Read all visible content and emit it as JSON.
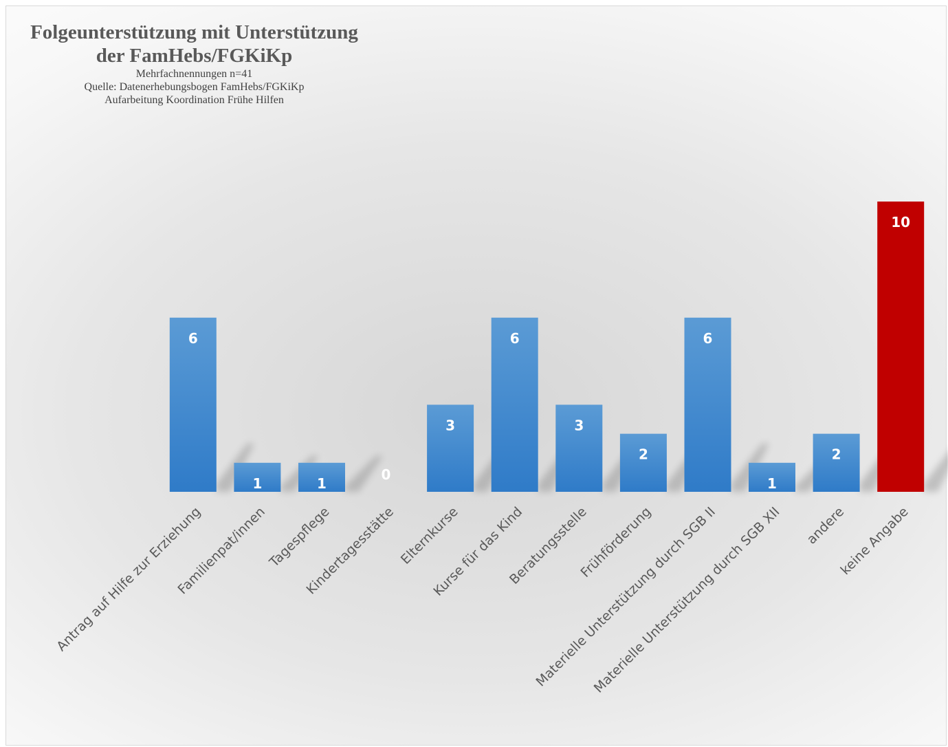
{
  "chart_data": {
    "type": "bar",
    "title_lines": [
      "Folgeunterstützung mit Unterstützung",
      "der FamHebs/FGKiKp"
    ],
    "subtitle_lines": [
      "Mehrfachnennungen n=41",
      "Quelle: Datenerhebungsbogen FamHebs/FGKiKp",
      "Aufarbeitung Koordination Frühe Hilfen"
    ],
    "categories": [
      "Antrag auf Hilfe zur Erziehung",
      "Familienpat/innen",
      "Tagespflege",
      "Kindertagesstätte",
      "Elternkurse",
      "Kurse für das Kind",
      "Beratungsstelle",
      "Frühförderung",
      "Materielle Unterstützung durch SGB II",
      "Materielle Unterstützung durch SGB XII",
      "andere",
      "keine Angabe"
    ],
    "values": [
      6,
      1,
      1,
      0,
      3,
      6,
      3,
      2,
      6,
      1,
      2,
      10
    ],
    "value_labels": [
      "6",
      "1",
      "1",
      "0",
      "3",
      "6",
      "3",
      "2",
      "6",
      "1",
      "2",
      "10"
    ],
    "xlabel": "",
    "ylabel": "",
    "ylim": [
      0,
      10
    ],
    "grid": false,
    "legend": "none",
    "colors": {
      "bar": "#4a8fd4",
      "bar_highlight": "#c00000",
      "label": "#ffffff",
      "axis_text": "#595959"
    },
    "highlight_category": "keine Angabe"
  }
}
